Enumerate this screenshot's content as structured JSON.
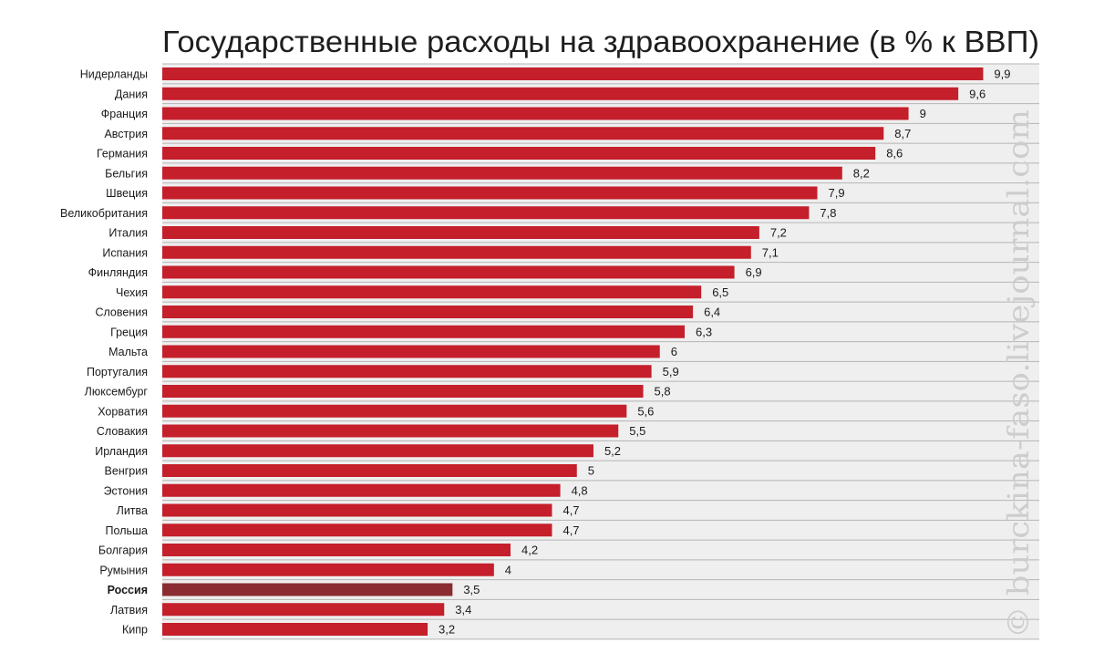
{
  "chart_data": {
    "type": "bar",
    "orientation": "horizontal",
    "title": "Государственные расходы на здравоохранение (в % к ВВП)",
    "categories": [
      "Нидерланды",
      "Дания",
      "Франция",
      "Австрия",
      "Германия",
      "Бельгия",
      "Швеция",
      "Великобритания",
      "Италия",
      "Испания",
      "Финляндия",
      "Чехия",
      "Словения",
      "Греция",
      "Мальта",
      "Португалия",
      "Люксембург",
      "Хорватия",
      "Словакия",
      "Ирландия",
      "Венгрия",
      "Эстония",
      "Литва",
      "Польша",
      "Болгария",
      "Румыния",
      "Россия",
      "Латвия",
      "Кипр"
    ],
    "values": [
      9.9,
      9.6,
      9,
      8.7,
      8.6,
      8.2,
      7.9,
      7.8,
      7.2,
      7.1,
      6.9,
      6.5,
      6.4,
      6.3,
      6,
      5.9,
      5.8,
      5.6,
      5.5,
      5.2,
      5,
      4.8,
      4.7,
      4.7,
      4.2,
      4,
      3.5,
      3.4,
      3.2
    ],
    "data_labels": [
      "9,9",
      "9,6",
      "9",
      "8,7",
      "8,6",
      "8,2",
      "7,9",
      "7,8",
      "7,2",
      "7,1",
      "6,9",
      "6,5",
      "6,4",
      "6,3",
      "6",
      "5,9",
      "5,8",
      "5,6",
      "5,5",
      "5,2",
      "5",
      "4,8",
      "4,7",
      "4,7",
      "4,2",
      "4",
      "3,5",
      "3,4",
      "3,2"
    ],
    "highlight": "Россия",
    "xlim": [
      0,
      10.5
    ],
    "grid": false,
    "legend": "none",
    "colors": {
      "bar": "#c41f2b",
      "highlight": "#8a2c31",
      "background": "#efefef"
    }
  },
  "watermark": "© burckina-faso.livejournal.com"
}
